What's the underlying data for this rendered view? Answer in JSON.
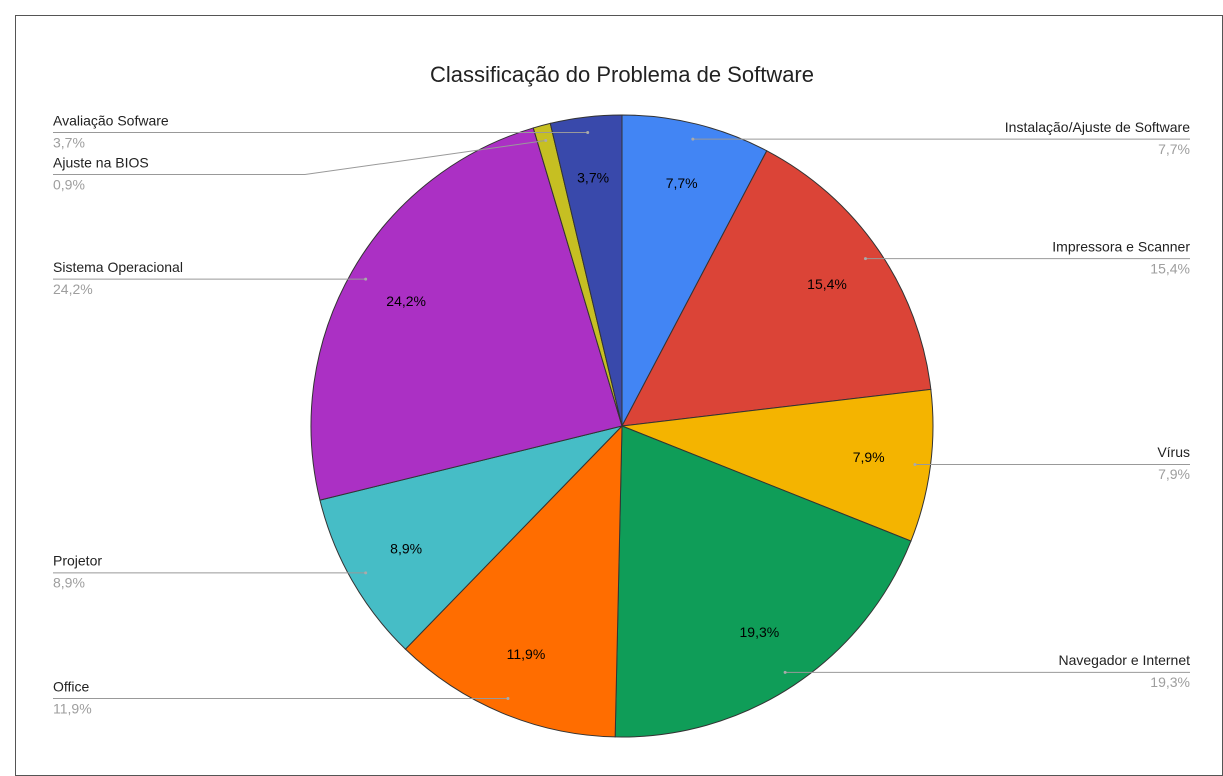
{
  "chart_data": {
    "type": "pie",
    "title": "Classificação do Problema de Software",
    "categories": [
      "Instalação/Ajuste de Software",
      "Impressora e Scanner",
      "Vírus",
      "Navegador e Internet",
      "Office",
      "Projetor",
      "Sistema Operacional",
      "Ajuste na BIOS",
      "Avaliação Sofware"
    ],
    "values": [
      7.7,
      15.4,
      7.9,
      19.3,
      11.9,
      8.9,
      24.2,
      0.9,
      3.7
    ],
    "value_labels": [
      "7,7%",
      "15,4%",
      "7,9%",
      "19,3%",
      "11,9%",
      "8,9%",
      "24,2%",
      "0,9%",
      "3,7%"
    ],
    "colors": [
      "#4285f4",
      "#db4437",
      "#f4b400",
      "#0f9d58",
      "#ff6d00",
      "#46bdc6",
      "#ab30c4",
      "#c6bf22",
      "#3949ab"
    ]
  }
}
